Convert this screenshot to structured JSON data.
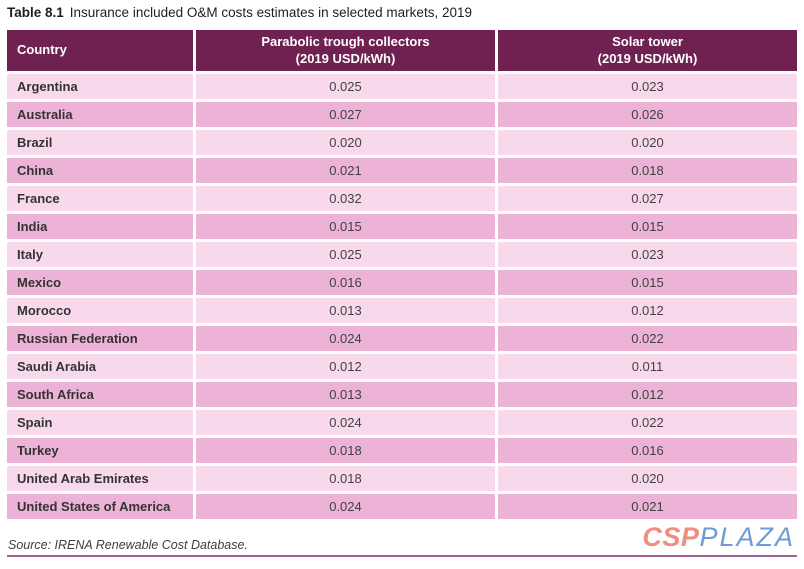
{
  "title": {
    "prefix": "Table 8.1",
    "text": "Insurance included O&M costs estimates in selected markets, 2019"
  },
  "table": {
    "header": {
      "country": "Country",
      "parabolic_line1": "Parabolic trough collectors",
      "parabolic_line2": "(2019 USD/kWh)",
      "solar_line1": "Solar tower",
      "solar_line2": "(2019 USD/kWh)"
    },
    "rows": [
      {
        "country": "Argentina",
        "parabolic": "0.025",
        "solar": "0.023"
      },
      {
        "country": "Australia",
        "parabolic": "0.027",
        "solar": "0.026"
      },
      {
        "country": "Brazil",
        "parabolic": "0.020",
        "solar": "0.020"
      },
      {
        "country": "China",
        "parabolic": "0.021",
        "solar": "0.018"
      },
      {
        "country": "France",
        "parabolic": "0.032",
        "solar": "0.027"
      },
      {
        "country": "India",
        "parabolic": "0.015",
        "solar": "0.015"
      },
      {
        "country": "Italy",
        "parabolic": "0.025",
        "solar": "0.023"
      },
      {
        "country": "Mexico",
        "parabolic": "0.016",
        "solar": "0.015"
      },
      {
        "country": "Morocco",
        "parabolic": "0.013",
        "solar": "0.012"
      },
      {
        "country": "Russian Federation",
        "parabolic": "0.024",
        "solar": "0.022"
      },
      {
        "country": "Saudi Arabia",
        "parabolic": "0.012",
        "solar": "0.011"
      },
      {
        "country": "South Africa",
        "parabolic": "0.013",
        "solar": "0.012"
      },
      {
        "country": "Spain",
        "parabolic": "0.024",
        "solar": "0.022"
      },
      {
        "country": "Turkey",
        "parabolic": "0.018",
        "solar": "0.016"
      },
      {
        "country": "United Arab Emirates",
        "parabolic": "0.018",
        "solar": "0.020"
      },
      {
        "country": "United States of America",
        "parabolic": "0.024",
        "solar": "0.021"
      }
    ]
  },
  "footer": {
    "source": "Source: IRENA Renewable Cost Database.",
    "logo_csp": "CSP",
    "logo_plaza": "PLAZA"
  },
  "colors": {
    "header_bg": "#6f2152",
    "row_dark": "#ecb3d6",
    "row_light": "#f8d9eb",
    "bottom_rule": "#a55f97",
    "logo_csp": "#f18d7c",
    "logo_plaza": "#6f9cd6"
  }
}
